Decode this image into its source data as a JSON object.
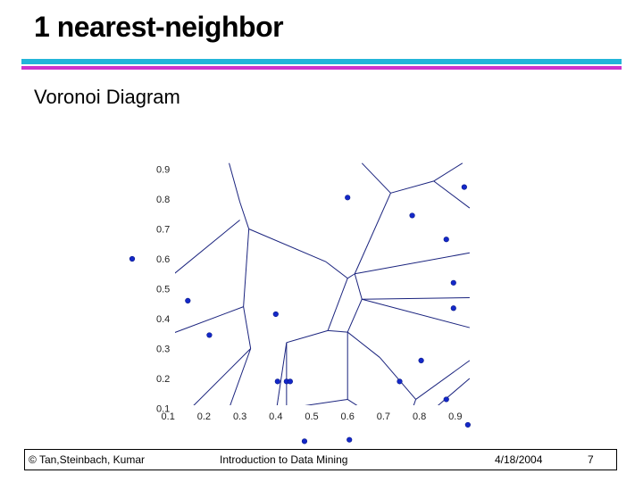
{
  "slide": {
    "title": "1 nearest-neighbor",
    "subtitle": "Voronoi Diagram"
  },
  "footer": {
    "copyright": "© Tan,Steinbach, Kumar",
    "course": "Introduction to Data Mining",
    "date": "4/18/2004",
    "page": "7"
  },
  "colors": {
    "rule_top": "#22b5d9",
    "rule_bottom": "#cc33cc",
    "edges": "#1a237e",
    "points": "#1428c8"
  },
  "chart_data": {
    "type": "scatter",
    "title": "",
    "xlabel": "",
    "ylabel": "",
    "xlim": [
      0,
      1.0
    ],
    "ylim": [
      0,
      0.9
    ],
    "x_ticks": [
      "0.1",
      "0.2",
      "0.3",
      "0.4",
      "0.5",
      "0.6",
      "0.7",
      "0.8",
      "0.9"
    ],
    "y_ticks": [
      "0.1",
      "0.2",
      "0.3",
      "0.4",
      "0.5",
      "0.6",
      "0.7",
      "0.8",
      "0.9"
    ],
    "points": [
      {
        "x": 0.0,
        "y": 0.6
      },
      {
        "x": 0.155,
        "y": 0.46
      },
      {
        "x": 0.215,
        "y": 0.345
      },
      {
        "x": 0.4,
        "y": 0.415
      },
      {
        "x": 0.405,
        "y": 0.19
      },
      {
        "x": 0.43,
        "y": 0.19
      },
      {
        "x": 0.44,
        "y": 0.19
      },
      {
        "x": 0.48,
        "y": -0.01
      },
      {
        "x": 0.6,
        "y": 0.805
      },
      {
        "x": 0.605,
        "y": -0.005
      },
      {
        "x": 0.745,
        "y": 0.19
      },
      {
        "x": 0.78,
        "y": 0.745
      },
      {
        "x": 0.805,
        "y": 0.26
      },
      {
        "x": 0.875,
        "y": 0.665
      },
      {
        "x": 0.875,
        "y": 0.13
      },
      {
        "x": 0.895,
        "y": 0.52
      },
      {
        "x": 0.895,
        "y": 0.435
      },
      {
        "x": 0.925,
        "y": 0.84
      },
      {
        "x": 0.935,
        "y": 0.045
      }
    ],
    "edges": [
      [
        0.27,
        0.92,
        0.3,
        0.79
      ],
      [
        0.3,
        0.79,
        0.325,
        0.7
      ],
      [
        0.0,
        0.435,
        0.3,
        0.73
      ],
      [
        0.325,
        0.7,
        0.31,
        0.44
      ],
      [
        0.31,
        0.44,
        0.0,
        0.3
      ],
      [
        0.31,
        0.44,
        0.33,
        0.3
      ],
      [
        0.33,
        0.3,
        0.24,
        0.0
      ],
      [
        0.08,
        0.0,
        0.33,
        0.3
      ],
      [
        0.325,
        0.7,
        0.54,
        0.59
      ],
      [
        0.54,
        0.59,
        0.6,
        0.535
      ],
      [
        0.6,
        0.535,
        0.62,
        0.55
      ],
      [
        0.62,
        0.55,
        0.72,
        0.82
      ],
      [
        0.72,
        0.82,
        0.84,
        0.86
      ],
      [
        0.84,
        0.86,
        0.92,
        0.92
      ],
      [
        0.64,
        0.92,
        0.72,
        0.82
      ],
      [
        0.84,
        0.86,
        0.94,
        0.77
      ],
      [
        0.62,
        0.55,
        0.94,
        0.62
      ],
      [
        0.62,
        0.55,
        0.64,
        0.465
      ],
      [
        0.64,
        0.465,
        0.94,
        0.47
      ],
      [
        0.64,
        0.465,
        0.94,
        0.37
      ],
      [
        0.6,
        0.535,
        0.545,
        0.36
      ],
      [
        0.545,
        0.36,
        0.43,
        0.32
      ],
      [
        0.545,
        0.36,
        0.6,
        0.355
      ],
      [
        0.6,
        0.355,
        0.64,
        0.465
      ],
      [
        0.6,
        0.355,
        0.69,
        0.27
      ],
      [
        0.69,
        0.27,
        0.79,
        0.13
      ],
      [
        0.79,
        0.13,
        0.94,
        0.26
      ],
      [
        0.79,
        0.13,
        0.755,
        0.01
      ],
      [
        0.755,
        0.01,
        0.6,
        0.13
      ],
      [
        0.6,
        0.13,
        0.6,
        0.355
      ],
      [
        0.43,
        0.32,
        0.43,
        0.1
      ],
      [
        0.43,
        0.1,
        0.6,
        0.13
      ],
      [
        0.43,
        0.32,
        0.4,
        0.08
      ],
      [
        0.4,
        0.08,
        0.1,
        0.0
      ],
      [
        0.755,
        0.01,
        0.94,
        0.2
      ]
    ]
  }
}
